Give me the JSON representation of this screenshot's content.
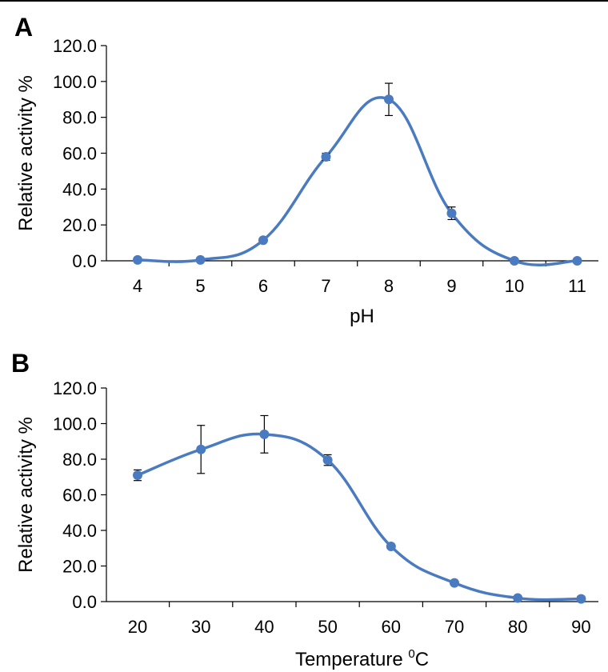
{
  "chart_data": [
    {
      "type": "line",
      "panel_label": "A",
      "xlabel": "pH",
      "ylabel": "Relative activity %",
      "x": [
        4,
        5,
        6,
        7,
        8,
        9,
        10,
        11
      ],
      "y_ticks": [
        "0.0",
        "20.0",
        "40.0",
        "60.0",
        "80.0",
        "100.0",
        "120.0"
      ],
      "ylim": [
        0,
        120
      ],
      "color": "#4a7bc0",
      "series": [
        {
          "values": [
            0.5,
            0.5,
            11.5,
            58.0,
            90.0,
            26.5,
            0.0,
            0.0
          ],
          "errors": [
            0,
            0,
            0,
            2,
            9,
            3.5,
            0,
            0
          ]
        }
      ]
    },
    {
      "type": "line",
      "panel_label": "B",
      "xlabel": "Temperature ",
      "xlabel_sup": "0",
      "xlabel_unit": "C",
      "ylabel": "Relative activity %",
      "x": [
        20,
        30,
        40,
        50,
        60,
        70,
        80,
        90
      ],
      "y_ticks": [
        "0.0",
        "20.0",
        "40.0",
        "60.0",
        "80.0",
        "100.0",
        "120.0"
      ],
      "ylim": [
        0,
        120
      ],
      "color": "#4a7bc0",
      "series": [
        {
          "values": [
            71.0,
            85.5,
            94.0,
            79.5,
            31.0,
            10.5,
            2.0,
            1.5
          ],
          "errors": [
            3,
            13.5,
            10.5,
            3,
            1,
            1,
            1,
            1.5
          ]
        }
      ]
    }
  ]
}
